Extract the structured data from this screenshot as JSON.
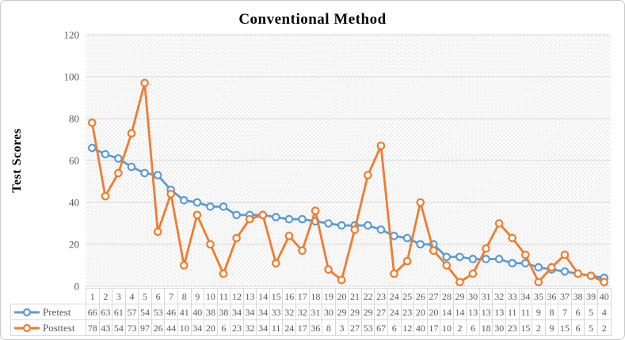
{
  "chart_data": {
    "type": "line",
    "title": "Conventional Method",
    "xlabel": "",
    "ylabel": "Test Scores",
    "ylim": [
      0,
      120
    ],
    "yticks": [
      0,
      20,
      40,
      60,
      80,
      100,
      120
    ],
    "grid": true,
    "plot_background": "diagonal-stripe-pattern",
    "legend_position": "table-left",
    "categories": [
      1,
      2,
      3,
      4,
      5,
      6,
      7,
      8,
      9,
      10,
      11,
      12,
      13,
      14,
      15,
      16,
      17,
      18,
      19,
      20,
      21,
      22,
      23,
      24,
      25,
      26,
      27,
      28,
      29,
      30,
      31,
      32,
      33,
      34,
      35,
      36,
      37,
      38,
      39,
      40
    ],
    "series": [
      {
        "name": "Pretest",
        "color": "#5B9BD5",
        "marker": "circle-open",
        "values": [
          66,
          63,
          61,
          57,
          54,
          53,
          46,
          41,
          40,
          38,
          38,
          34,
          34,
          34,
          33,
          32,
          32,
          31,
          30,
          29,
          29,
          29,
          27,
          24,
          23,
          20,
          20,
          14,
          14,
          13,
          13,
          13,
          11,
          11,
          9,
          8,
          7,
          6,
          5,
          4
        ]
      },
      {
        "name": "Posttest",
        "color": "#ED7D31",
        "marker": "circle-open",
        "values": [
          78,
          43,
          54,
          73,
          97,
          26,
          44,
          10,
          34,
          20,
          6,
          23,
          32,
          34,
          11,
          24,
          17,
          36,
          8,
          3,
          27,
          53,
          67,
          6,
          12,
          40,
          17,
          10,
          2,
          6,
          18,
          30,
          23,
          15,
          2,
          9,
          15,
          6,
          5,
          2
        ]
      }
    ]
  },
  "colors": {
    "gridline": "#d9d9d9",
    "hatch_stripe": "#e8e8e8",
    "tick_text": "#595959",
    "table_border": "#d9d9d9",
    "table_text": "#595959",
    "figure_border": "#c9c9c9"
  }
}
